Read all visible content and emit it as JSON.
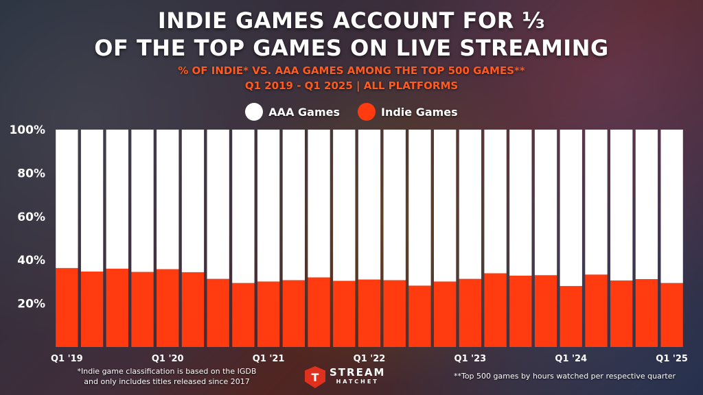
{
  "header": {
    "title_line1": "INDIE GAMES ACCOUNT FOR ⅓",
    "title_line2": "OF THE TOP GAMES ON LIVE STREAMING",
    "subtitle_line1": "% OF INDIE* VS. AAA GAMES AMONG THE TOP 500 GAMES**",
    "subtitle_line2": "Q1 2019 - Q1 2025 | ALL PLATFORMS"
  },
  "footnotes": {
    "left_line1": "*Indie game classification is based on the IGDB",
    "left_line2": "and only includes titles released since 2017",
    "right": "**Top 500 games by hours watched per respective quarter"
  },
  "logo": {
    "main": "STREAM",
    "sub": "HATCHET",
    "badge": "T"
  },
  "colors": {
    "aaa": "#ffffff",
    "indie": "#ff3b0f",
    "axis_text": "#ffffff"
  },
  "chart_data": {
    "type": "bar",
    "stacked": true,
    "categories": [
      "Q1 '19",
      "Q2 '19",
      "Q3 '19",
      "Q4 '19",
      "Q1 '20",
      "Q2 '20",
      "Q3 '20",
      "Q4 '20",
      "Q1 '21",
      "Q2 '21",
      "Q3 '21",
      "Q4 '21",
      "Q1 '22",
      "Q2 '22",
      "Q3 '22",
      "Q4 '22",
      "Q1 '23",
      "Q2 '23",
      "Q3 '23",
      "Q4 '23",
      "Q1 '24",
      "Q2 '24",
      "Q3 '24",
      "Q4 '24",
      "Q1 '25"
    ],
    "x_tick_labels": [
      "Q1 '19",
      "",
      "",
      "",
      "Q1 '20",
      "",
      "",
      "",
      "Q1 '21",
      "",
      "",
      "",
      "Q1 '22",
      "",
      "",
      "",
      "Q1 '23",
      "",
      "",
      "",
      "Q1 '24",
      "",
      "",
      "",
      "Q1 '25"
    ],
    "series": [
      {
        "name": "Indie Games",
        "values": [
          36.3,
          34.7,
          36.0,
          34.5,
          35.8,
          34.4,
          31.3,
          29.4,
          30.1,
          30.7,
          32.0,
          30.4,
          31.0,
          30.7,
          28.2,
          30.1,
          31.3,
          33.9,
          32.8,
          33.0,
          28.0,
          33.3,
          30.6,
          31.2,
          29.4
        ]
      },
      {
        "name": "AAA Games",
        "values": [
          63.7,
          65.3,
          64.0,
          65.5,
          64.2,
          65.6,
          68.7,
          70.6,
          69.9,
          69.3,
          68.0,
          69.6,
          69.0,
          69.3,
          71.8,
          69.9,
          68.7,
          66.1,
          67.2,
          67.0,
          72.0,
          66.7,
          69.4,
          68.8,
          70.6
        ]
      }
    ],
    "y_ticks": [
      "20%",
      "40%",
      "60%",
      "80%",
      "100%"
    ],
    "y_tick_values": [
      20,
      40,
      60,
      80,
      100
    ],
    "ylim": [
      0,
      100
    ],
    "legend": [
      "AAA Games",
      "Indie Games"
    ],
    "legend_position": "top-center",
    "grid": false
  }
}
